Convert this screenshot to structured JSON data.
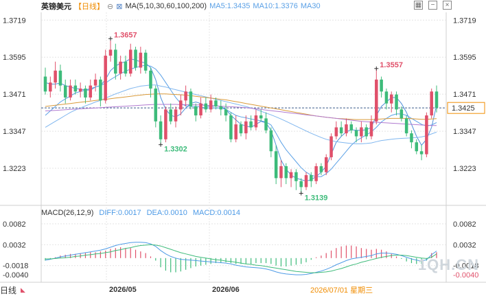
{
  "header": {
    "symbol": "英镑美元",
    "period": "【日线】",
    "ma_config": "MA(5,10,30,60,100,200)",
    "ma5": "MA5:1.3435",
    "ma10": "MA10:1.3376",
    "ma30": "MA30"
  },
  "macd_header": {
    "title": "MACD(26,12,9)",
    "diff": "DIFF:0.0017",
    "dea": "DEA:0.0010",
    "macd": "MACD:0.0014"
  },
  "footer": {
    "period": "日线",
    "date": "2026/07/01 星期三"
  },
  "watermark": "1QH.CN",
  "colors": {
    "up": "#e0506a",
    "down": "#3dbb7a",
    "ma_blue": "#4f8fd8",
    "ma_purple": "#b07ad0",
    "ma_orange": "#d99a3a",
    "grid": "#e4e4e4"
  },
  "chart_data": [
    {
      "type": "candlestick",
      "y_ticks": [
        1.3719,
        1.3595,
        1.3471,
        1.3347,
        1.3223
      ],
      "ylim": [
        1.3115,
        1.3745
      ],
      "x_labels": [
        "2026/05",
        "2026/06"
      ],
      "last_price": "1.3425",
      "annotations": [
        {
          "label": "1.3657",
          "type": "high",
          "value": 1.3657,
          "index": 13
        },
        {
          "label": "1.3302",
          "type": "low",
          "value": 1.3302,
          "index": 23
        },
        {
          "label": "1.3139",
          "type": "low",
          "value": 1.3139,
          "index": 51
        },
        {
          "label": "1.3557",
          "type": "high",
          "value": 1.3557,
          "index": 66
        }
      ],
      "candles": [
        [
          1.353,
          1.348,
          1.356,
          1.347
        ],
        [
          1.348,
          1.351,
          1.353,
          1.346
        ],
        [
          1.351,
          1.355,
          1.358,
          1.349
        ],
        [
          1.355,
          1.35,
          1.357,
          1.348
        ],
        [
          1.35,
          1.346,
          1.352,
          1.344
        ],
        [
          1.346,
          1.35,
          1.352,
          1.345
        ],
        [
          1.35,
          1.348,
          1.352,
          1.347
        ],
        [
          1.348,
          1.349,
          1.351,
          1.346
        ],
        [
          1.349,
          1.346,
          1.35,
          1.344
        ],
        [
          1.346,
          1.35,
          1.352,
          1.345
        ],
        [
          1.35,
          1.352,
          1.354,
          1.348
        ],
        [
          1.352,
          1.345,
          1.353,
          1.343
        ],
        [
          1.345,
          1.36,
          1.362,
          1.344
        ],
        [
          1.36,
          1.362,
          1.3657,
          1.358
        ],
        [
          1.362,
          1.354,
          1.364,
          1.352
        ],
        [
          1.354,
          1.358,
          1.36,
          1.352
        ],
        [
          1.358,
          1.354,
          1.36,
          1.353
        ],
        [
          1.354,
          1.362,
          1.364,
          1.353
        ],
        [
          1.362,
          1.356,
          1.363,
          1.355
        ],
        [
          1.356,
          1.361,
          1.363,
          1.354
        ],
        [
          1.361,
          1.355,
          1.362,
          1.354
        ],
        [
          1.355,
          1.349,
          1.356,
          1.346
        ],
        [
          1.349,
          1.338,
          1.35,
          1.336
        ],
        [
          1.338,
          1.332,
          1.34,
          1.3302
        ],
        [
          1.332,
          1.342,
          1.343,
          1.331
        ],
        [
          1.342,
          1.338,
          1.344,
          1.337
        ],
        [
          1.338,
          1.342,
          1.343,
          1.336
        ],
        [
          1.342,
          1.345,
          1.347,
          1.34
        ],
        [
          1.345,
          1.348,
          1.35,
          1.343
        ],
        [
          1.348,
          1.343,
          1.349,
          1.342
        ],
        [
          1.343,
          1.34,
          1.344,
          1.338
        ],
        [
          1.34,
          1.344,
          1.346,
          1.339
        ],
        [
          1.344,
          1.342,
          1.346,
          1.341
        ],
        [
          1.342,
          1.345,
          1.347,
          1.341
        ],
        [
          1.345,
          1.343,
          1.346,
          1.342
        ],
        [
          1.343,
          1.342,
          1.345,
          1.34
        ],
        [
          1.342,
          1.34,
          1.344,
          1.338
        ],
        [
          1.34,
          1.332,
          1.341,
          1.331
        ],
        [
          1.332,
          1.337,
          1.34,
          1.331
        ],
        [
          1.337,
          1.334,
          1.338,
          1.333
        ],
        [
          1.334,
          1.338,
          1.34,
          1.332
        ],
        [
          1.338,
          1.336,
          1.34,
          1.335
        ],
        [
          1.336,
          1.34,
          1.342,
          1.335
        ],
        [
          1.34,
          1.339,
          1.342,
          1.338
        ],
        [
          1.339,
          1.335,
          1.341,
          1.334
        ],
        [
          1.335,
          1.328,
          1.336,
          1.326
        ],
        [
          1.328,
          1.319,
          1.33,
          1.317
        ],
        [
          1.319,
          1.323,
          1.325,
          1.316
        ],
        [
          1.323,
          1.319,
          1.324,
          1.317
        ],
        [
          1.319,
          1.321,
          1.322,
          1.316
        ],
        [
          1.321,
          1.318,
          1.322,
          1.315
        ],
        [
          1.318,
          1.316,
          1.319,
          1.3139
        ],
        [
          1.316,
          1.32,
          1.321,
          1.315
        ],
        [
          1.32,
          1.318,
          1.321,
          1.316
        ],
        [
          1.318,
          1.323,
          1.324,
          1.317
        ],
        [
          1.323,
          1.321,
          1.324,
          1.32
        ],
        [
          1.321,
          1.326,
          1.327,
          1.32
        ],
        [
          1.326,
          1.333,
          1.334,
          1.325
        ],
        [
          1.333,
          1.336,
          1.338,
          1.332
        ],
        [
          1.336,
          1.334,
          1.338,
          1.333
        ],
        [
          1.334,
          1.337,
          1.339,
          1.333
        ],
        [
          1.337,
          1.335,
          1.338,
          1.334
        ],
        [
          1.335,
          1.333,
          1.336,
          1.331
        ],
        [
          1.333,
          1.336,
          1.338,
          1.331
        ],
        [
          1.336,
          1.333,
          1.337,
          1.332
        ],
        [
          1.333,
          1.338,
          1.34,
          1.332
        ],
        [
          1.338,
          1.352,
          1.3557,
          1.337
        ],
        [
          1.352,
          1.348,
          1.353,
          1.346
        ],
        [
          1.348,
          1.344,
          1.349,
          1.342
        ],
        [
          1.344,
          1.347,
          1.348,
          1.341
        ],
        [
          1.347,
          1.342,
          1.348,
          1.34
        ],
        [
          1.342,
          1.339,
          1.343,
          1.338
        ],
        [
          1.339,
          1.334,
          1.34,
          1.333
        ],
        [
          1.334,
          1.331,
          1.335,
          1.329
        ],
        [
          1.331,
          1.328,
          1.332,
          1.327
        ],
        [
          1.328,
          1.327,
          1.33,
          1.325
        ],
        [
          1.327,
          1.34,
          1.341,
          1.326
        ],
        [
          1.34,
          1.348,
          1.349,
          1.339
        ],
        [
          1.348,
          1.3425,
          1.35,
          1.341
        ]
      ],
      "ma_lines": [
        {
          "name": "MA5",
          "values": [
            1.351,
            1.3505,
            1.3505,
            1.3508,
            1.35,
            1.3495,
            1.349,
            1.3488,
            1.3485,
            1.3485,
            1.3495,
            1.35,
            1.352,
            1.355,
            1.3565,
            1.3575,
            1.358,
            1.359,
            1.3585,
            1.358,
            1.3575,
            1.356,
            1.352,
            1.346,
            1.342,
            1.34,
            1.3395,
            1.3405,
            1.3425,
            1.344,
            1.3445,
            1.344,
            1.343,
            1.343,
            1.3432,
            1.343,
            1.342,
            1.34,
            1.3385,
            1.337,
            1.3365,
            1.336,
            1.337,
            1.338,
            1.3375,
            1.335,
            1.33,
            1.325,
            1.322,
            1.32,
            1.319,
            1.3185,
            1.318,
            1.3185,
            1.3195,
            1.321,
            1.323,
            1.327,
            1.331,
            1.333,
            1.3345,
            1.3352,
            1.335,
            1.335,
            1.3352,
            1.336,
            1.34,
            1.343,
            1.3445,
            1.346,
            1.346,
            1.344,
            1.341,
            1.337,
            1.333,
            1.33,
            1.332,
            1.336,
            1.3435
          ]
        },
        {
          "name": "MA10",
          "values": [
            1.34,
            1.3415,
            1.343,
            1.3445,
            1.3455,
            1.3465,
            1.3475,
            1.348,
            1.3485,
            1.349,
            1.3495,
            1.35,
            1.3508,
            1.352,
            1.353,
            1.354,
            1.3548,
            1.3555,
            1.356,
            1.3565,
            1.3568,
            1.3565,
            1.3555,
            1.3535,
            1.351,
            1.3485,
            1.346,
            1.344,
            1.3432,
            1.343,
            1.343,
            1.3428,
            1.3425,
            1.3425,
            1.3425,
            1.3425,
            1.342,
            1.341,
            1.34,
            1.3395,
            1.3392,
            1.3388,
            1.3385,
            1.3382,
            1.3378,
            1.3368,
            1.334,
            1.331,
            1.3285,
            1.3265,
            1.3245,
            1.3225,
            1.321,
            1.32,
            1.3195,
            1.3195,
            1.3205,
            1.322,
            1.324,
            1.326,
            1.328,
            1.33,
            1.3315,
            1.3325,
            1.3335,
            1.3345,
            1.336,
            1.3378,
            1.339,
            1.34,
            1.3405,
            1.3405,
            1.34,
            1.339,
            1.338,
            1.337,
            1.3365,
            1.3368,
            1.3376
          ]
        },
        {
          "name": "MA30",
          "values": [
            1.336,
            1.337,
            1.338,
            1.339,
            1.34,
            1.341,
            1.3418,
            1.3425,
            1.3432,
            1.3438,
            1.3445,
            1.345,
            1.3458,
            1.3465,
            1.3472,
            1.3478,
            1.3484,
            1.349,
            1.3494,
            1.3498,
            1.35,
            1.3502,
            1.3502,
            1.3498,
            1.3495,
            1.349,
            1.3486,
            1.3482,
            1.3478,
            1.3474,
            1.347,
            1.3466,
            1.3462,
            1.3458,
            1.3454,
            1.345,
            1.3446,
            1.3442,
            1.3438,
            1.3434,
            1.343,
            1.3425,
            1.342,
            1.3414,
            1.3408,
            1.3402,
            1.3395,
            1.3388,
            1.338,
            1.3372,
            1.3364,
            1.3356,
            1.3348,
            1.334,
            1.3333,
            1.3326,
            1.332,
            1.3316,
            1.3312,
            1.331,
            1.3308,
            1.3306,
            1.3305,
            1.3305,
            1.3306,
            1.3308,
            1.3312,
            1.3316,
            1.3318,
            1.332,
            1.3322,
            1.3323,
            1.3324,
            1.3325,
            1.3326,
            1.3328,
            1.3332,
            1.3338,
            1.3344
          ]
        },
        {
          "name": "MA60",
          "values": [
            1.343,
            1.3432,
            1.3434,
            1.3436,
            1.3438,
            1.344,
            1.3442,
            1.3444,
            1.3446,
            1.3448,
            1.345,
            1.3452,
            1.3454,
            1.3456,
            1.3458,
            1.346,
            1.3462,
            1.3464,
            1.3466,
            1.3468,
            1.347,
            1.3471,
            1.3472,
            1.3472,
            1.3472,
            1.3471,
            1.347,
            1.3469,
            1.3468,
            1.3466,
            1.3464,
            1.3462,
            1.346,
            1.3458,
            1.3456,
            1.3454,
            1.3452,
            1.3449,
            1.3446,
            1.3443,
            1.344,
            1.3437,
            1.3434,
            1.3431,
            1.3428,
            1.3425,
            1.3422,
            1.3419,
            1.3416,
            1.3413,
            1.341,
            1.3407,
            1.3404,
            1.3401,
            1.3398,
            1.3396,
            1.3394,
            1.3392,
            1.339,
            1.3389,
            1.3388,
            1.3387,
            1.3386,
            1.3386,
            1.3386,
            1.3386,
            1.3387,
            1.3388,
            1.3389,
            1.339,
            1.339,
            1.339,
            1.339,
            1.3389,
            1.3388,
            1.3387,
            1.3387,
            1.3388,
            1.3389
          ]
        },
        {
          "name": "MA100",
          "values": [
            1.3415,
            1.3416,
            1.3417,
            1.3418,
            1.3419,
            1.342,
            1.3421,
            1.3422,
            1.3423,
            1.3424,
            1.3425,
            1.3426,
            1.3427,
            1.3428,
            1.3429,
            1.343,
            1.3431,
            1.3432,
            1.3433,
            1.3434,
            1.3435,
            1.3436,
            1.3437,
            1.3437,
            1.3437,
            1.3437,
            1.3437,
            1.3436,
            1.3436,
            1.3436,
            1.3435,
            1.3435,
            1.3434,
            1.3433,
            1.3432,
            1.3431,
            1.343,
            1.3429,
            1.3428,
            1.3427,
            1.3426,
            1.3424,
            1.3422,
            1.342,
            1.3418,
            1.3416,
            1.3414,
            1.3412,
            1.341,
            1.3408,
            1.3406,
            1.3404,
            1.3402,
            1.34,
            1.3398,
            1.3396,
            1.3394,
            1.3392,
            1.339,
            1.3388,
            1.3386,
            1.3384,
            1.3382,
            1.338,
            1.3379,
            1.3378,
            1.3377,
            1.3376,
            1.3375,
            1.3374,
            1.3373,
            1.3372,
            1.3371,
            1.337,
            1.3369,
            1.3368,
            1.3367,
            1.3366,
            1.3366
          ]
        }
      ]
    },
    {
      "type": "macd",
      "y_ticks": [
        0.0082,
        0.0032,
        -0.0018,
        -0.004
      ],
      "ylim": [
        -0.0048,
        0.0095
      ],
      "diff": [
        -0.0005,
        -0.0003,
        0.0,
        0.0003,
        0.0005,
        0.0007,
        0.0009,
        0.0011,
        0.0013,
        0.0015,
        0.0017,
        0.0019,
        0.0022,
        0.0026,
        0.003,
        0.0033,
        0.0035,
        0.0037,
        0.0038,
        0.0038,
        0.0037,
        0.0034,
        0.0028,
        0.0018,
        0.001,
        0.0004,
        0.0,
        -0.0003,
        -0.0004,
        -0.0005,
        -0.0006,
        -0.0007,
        -0.0008,
        -0.0009,
        -0.001,
        -0.0011,
        -0.0012,
        -0.0014,
        -0.0017,
        -0.0019,
        -0.0021,
        -0.0022,
        -0.0023,
        -0.0024,
        -0.0026,
        -0.0029,
        -0.0033,
        -0.0036,
        -0.0038,
        -0.0039,
        -0.004,
        -0.004,
        -0.0039,
        -0.0037,
        -0.0034,
        -0.0031,
        -0.0027,
        -0.0022,
        -0.0016,
        -0.0011,
        -0.0006,
        -0.0002,
        0.0,
        0.0002,
        0.0004,
        0.0006,
        0.001,
        0.0012,
        0.0012,
        0.0011,
        0.0009,
        0.0006,
        0.0002,
        -0.0002,
        -0.0005,
        -0.0007,
        -0.0004,
        0.0008,
        0.0017
      ],
      "dea": [
        -0.0002,
        -0.0002,
        -0.0001,
        0.0,
        0.0001,
        0.0002,
        0.0004,
        0.0005,
        0.0007,
        0.0008,
        0.001,
        0.0011,
        0.0013,
        0.0015,
        0.0018,
        0.002,
        0.0023,
        0.0025,
        0.0028,
        0.003,
        0.0031,
        0.0032,
        0.0031,
        0.0029,
        0.0025,
        0.0021,
        0.0017,
        0.0013,
        0.001,
        0.0007,
        0.0004,
        0.0002,
        0.0,
        -0.0002,
        -0.0004,
        -0.0005,
        -0.0007,
        -0.0008,
        -0.001,
        -0.0012,
        -0.0014,
        -0.0015,
        -0.0017,
        -0.0018,
        -0.002,
        -0.0022,
        -0.0024,
        -0.0026,
        -0.0028,
        -0.003,
        -0.0032,
        -0.0033,
        -0.0034,
        -0.0035,
        -0.0035,
        -0.0034,
        -0.0033,
        -0.0031,
        -0.0028,
        -0.0025,
        -0.0021,
        -0.0017,
        -0.0014,
        -0.001,
        -0.0007,
        -0.0004,
        -0.0001,
        0.0002,
        0.0004,
        0.0006,
        0.0007,
        0.0007,
        0.0006,
        0.0004,
        0.0002,
        0.0,
        -0.0001,
        0.0002,
        0.001
      ]
    }
  ]
}
